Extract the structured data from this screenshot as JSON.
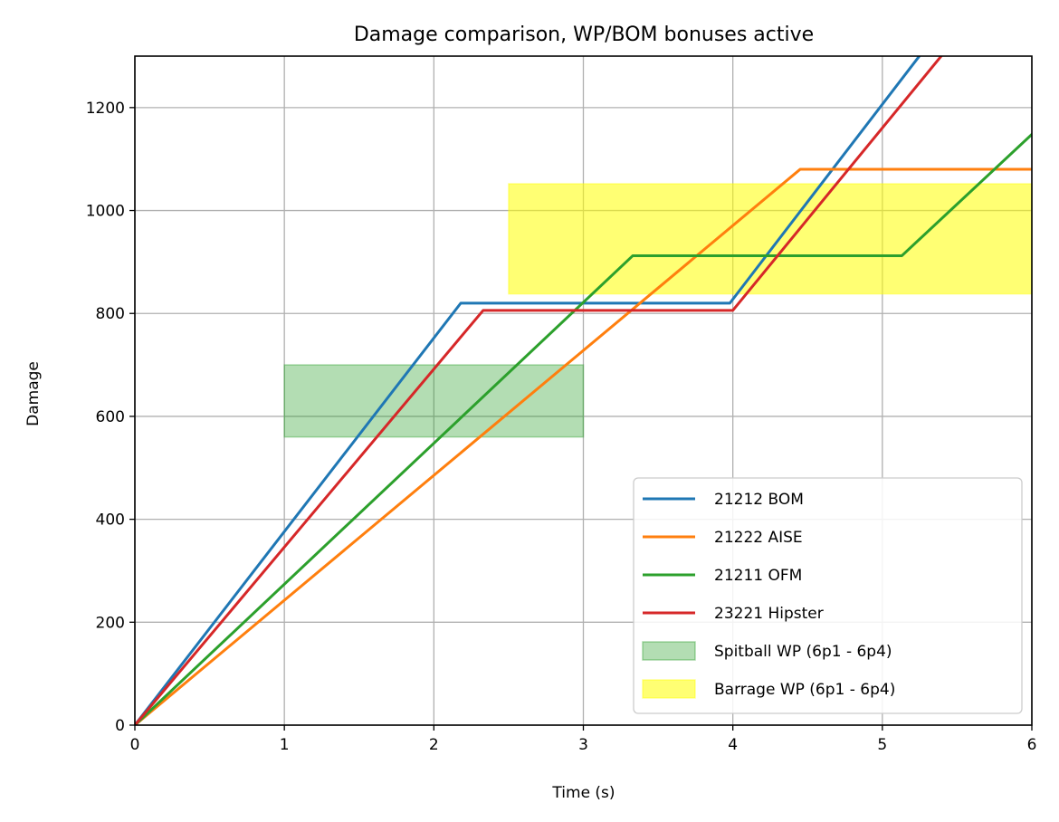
{
  "chart_data": {
    "type": "line",
    "title": "Damage comparison, WP/BOM bonuses active",
    "xlabel": "Time (s)",
    "ylabel": "Damage",
    "xlim": [
      0,
      6
    ],
    "ylim": [
      0,
      1300
    ],
    "xticks": [
      0,
      1,
      2,
      3,
      4,
      5,
      6
    ],
    "yticks": [
      0,
      200,
      400,
      600,
      800,
      1000,
      1200
    ],
    "grid": true,
    "legend_position": "lower-right",
    "series": [
      {
        "name": "21212 BOM",
        "color": "#1f77b4",
        "x": [
          0,
          2.18,
          3.98,
          5.3
        ],
        "y": [
          0,
          820,
          820,
          1320
        ]
      },
      {
        "name": "21222 AISE",
        "color": "#ff7f0e",
        "x": [
          0,
          4.45,
          6
        ],
        "y": [
          0,
          1080,
          1080
        ]
      },
      {
        "name": "21211 OFM",
        "color": "#2ca02c",
        "x": [
          0,
          3.33,
          5.13,
          6
        ],
        "y": [
          0,
          912,
          912,
          1148
        ]
      },
      {
        "name": "23221 Hipster",
        "color": "#d62728",
        "x": [
          0,
          2.33,
          4.0,
          5.45
        ],
        "y": [
          0,
          806,
          806,
          1320
        ]
      }
    ],
    "regions": [
      {
        "name": "Spitball WP (6p1 - 6p4)",
        "x": [
          1,
          3
        ],
        "y": [
          560,
          700
        ],
        "fill": "#2ca02c",
        "fill_opacity": 0.36,
        "stroke": "#2ca02c"
      },
      {
        "name": "Barrage WP (6p1 - 6p4)",
        "x": [
          2.5,
          6
        ],
        "y": [
          838,
          1052
        ],
        "fill": "#ffff00",
        "fill_opacity": 0.55,
        "stroke": "#ffff00"
      }
    ]
  }
}
